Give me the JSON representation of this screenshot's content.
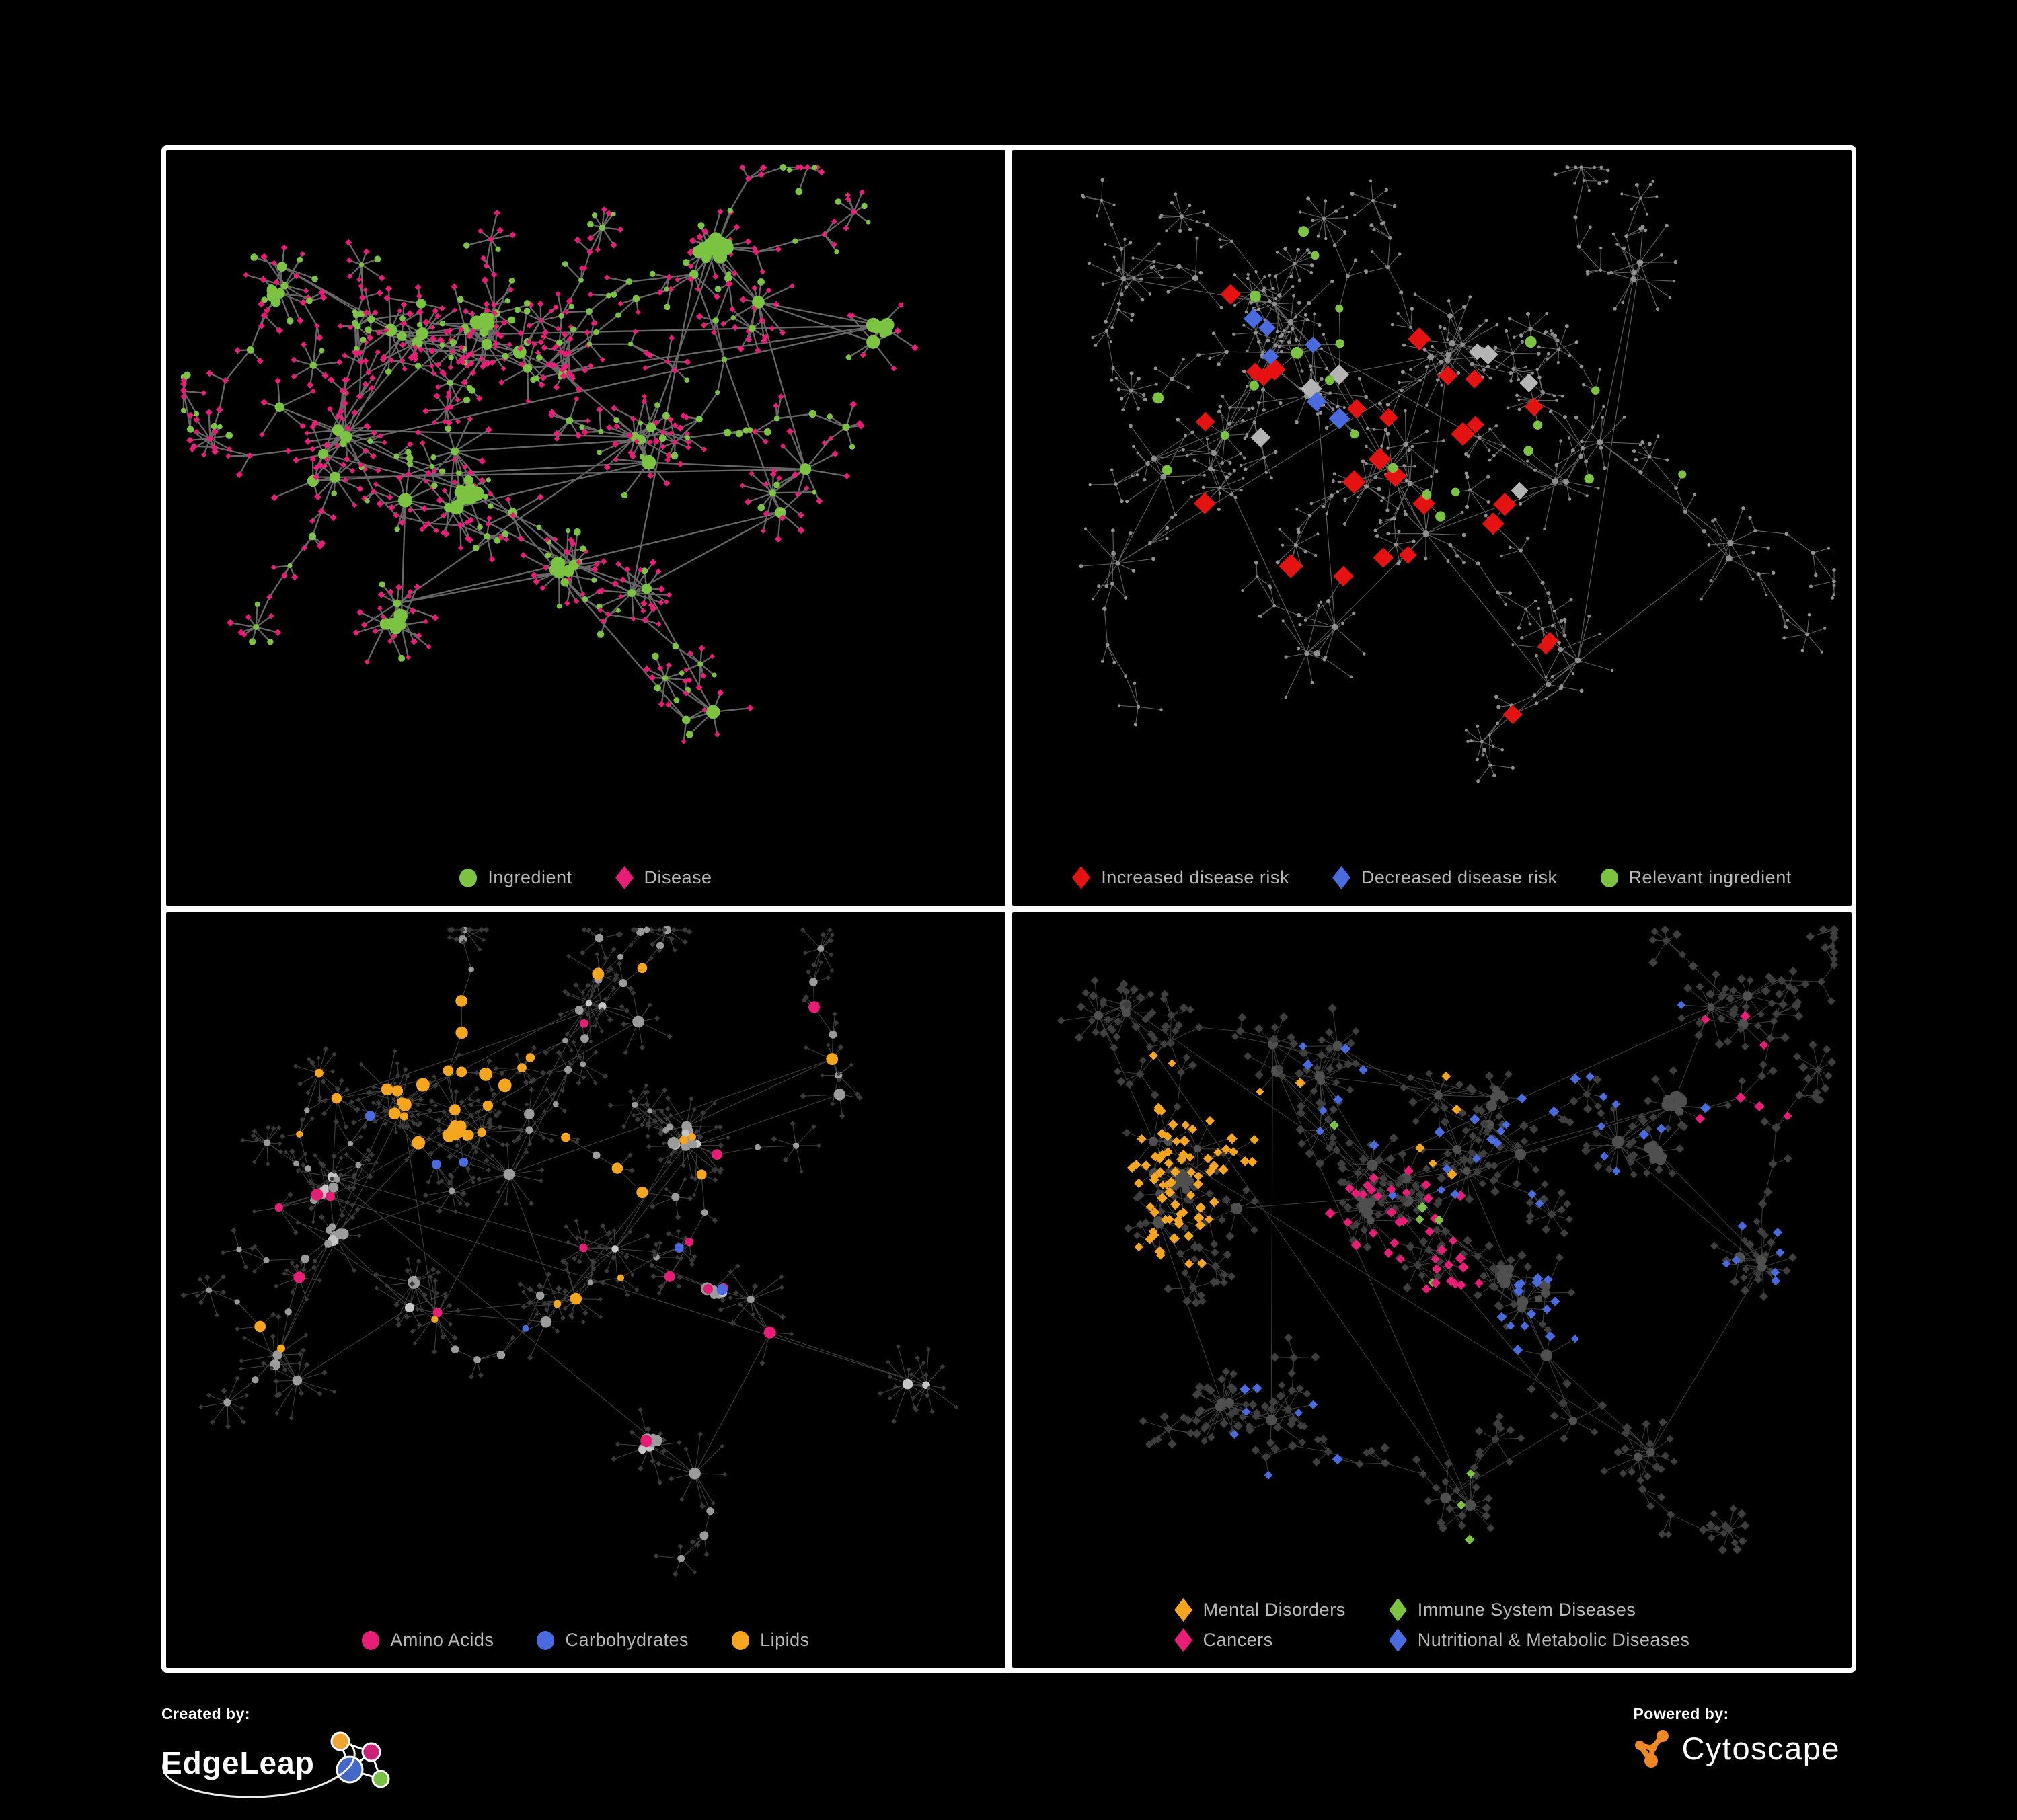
{
  "page": {
    "background": "#000000",
    "frame_color": "#ffffff"
  },
  "colors": {
    "green": "#7cc342",
    "pink": "#e81d78",
    "red": "#e51212",
    "blue": "#4a6bdf",
    "orange": "#f6a61e",
    "gray_node": "#8f8f8f",
    "light_gray_diamond": "#b4b4b4",
    "dark_diamond": "#3e3e3e",
    "legend_text": "#b8b8b8"
  },
  "panels": [
    {
      "name": "ingredient-disease-network",
      "legend_layout": "row",
      "legend": [
        {
          "shape": "circle",
          "color": "#7cc342",
          "label": "Ingredient"
        },
        {
          "shape": "diamond",
          "color": "#e81d78",
          "label": "Disease"
        }
      ],
      "net": {
        "seed": 7,
        "clusters": [
          [
            0.3,
            0.27,
            0.1,
            7
          ],
          [
            0.2,
            0.4,
            0.11,
            7
          ],
          [
            0.42,
            0.3,
            0.08,
            6
          ],
          [
            0.36,
            0.5,
            0.1,
            6
          ],
          [
            0.56,
            0.42,
            0.08,
            4
          ],
          [
            0.68,
            0.2,
            0.08,
            4
          ],
          [
            0.52,
            0.66,
            0.08,
            4
          ],
          [
            0.28,
            0.7,
            0.07,
            3
          ],
          [
            0.76,
            0.52,
            0.06,
            3
          ],
          [
            0.14,
            0.2,
            0.06,
            3
          ],
          [
            0.62,
            0.84,
            0.05,
            2
          ],
          [
            0.86,
            0.3,
            0.05,
            2
          ]
        ],
        "extraEdges": 26,
        "leafMin": 3,
        "leafMax": 11,
        "leafDist": 42,
        "chains": 26,
        "clumps": 10,
        "edge": {
          "color": "#6d6d6d",
          "width": 2.3,
          "opacity": 0.95
        },
        "base": {
          "hub": [
            {
              "p": 1.0,
              "shape": "circle",
              "color": "#7cc342",
              "size": [
                5,
                11
              ]
            }
          ],
          "mid": [
            {
              "p": 0.5,
              "shape": "circle",
              "color": "#7cc342",
              "size": [
                3.5,
                6
              ]
            },
            {
              "p": 0.5,
              "shape": "diamond",
              "color": "#e81d78",
              "size": [
                4,
                5.5
              ]
            }
          ],
          "leaf": [
            {
              "p": 0.8,
              "shape": "diamond",
              "color": "#e81d78",
              "size": [
                4,
                5.5
              ]
            },
            {
              "p": 0.2,
              "shape": "circle",
              "color": "#7cc342",
              "size": [
                3.5,
                5.5
              ]
            }
          ]
        },
        "highlights": []
      }
    },
    {
      "name": "disease-risk-network",
      "legend_layout": "row",
      "legend": [
        {
          "shape": "diamond",
          "color": "#e51212",
          "label": "Increased disease risk"
        },
        {
          "shape": "diamond",
          "color": "#4a6bdf",
          "label": "Decreased disease risk"
        },
        {
          "shape": "circle",
          "color": "#7cc342",
          "label": "Relevant ingredient"
        }
      ],
      "net": {
        "seed": 5,
        "clusters": [
          [
            0.34,
            0.3,
            0.12,
            7
          ],
          [
            0.52,
            0.3,
            0.09,
            6
          ],
          [
            0.24,
            0.44,
            0.09,
            5
          ],
          [
            0.48,
            0.5,
            0.09,
            5
          ],
          [
            0.68,
            0.44,
            0.08,
            4
          ],
          [
            0.74,
            0.18,
            0.07,
            3
          ],
          [
            0.38,
            0.7,
            0.08,
            4
          ],
          [
            0.64,
            0.74,
            0.06,
            3
          ],
          [
            0.18,
            0.2,
            0.07,
            3
          ],
          [
            0.86,
            0.58,
            0.05,
            2
          ],
          [
            0.12,
            0.6,
            0.05,
            2
          ]
        ],
        "extraEdges": 10,
        "leafMin": 2,
        "leafMax": 9,
        "leafDist": 50,
        "chains": 34,
        "clumps": 0,
        "edge": {
          "color": "#8c8c8c",
          "width": 1.1,
          "opacity": 0.7
        },
        "base": {
          "hub": [
            {
              "p": 1.0,
              "shape": "circle",
              "color": "#8f8f8f",
              "size": [
                3,
                5
              ]
            }
          ],
          "mid": [
            {
              "p": 1.0,
              "shape": "circle",
              "color": "#8f8f8f",
              "size": [
                2.2,
                3.2
              ]
            }
          ],
          "leaf": [
            {
              "p": 1.0,
              "shape": "circle",
              "color": "#8f8f8f",
              "size": [
                2,
                3
              ]
            }
          ]
        },
        "highlights": [
          {
            "shape": "diamond",
            "color": "#e51212",
            "size": [
              13,
              18
            ],
            "count": 24,
            "region": [
              0.42,
              0.36,
              0.3
            ]
          },
          {
            "shape": "diamond",
            "color": "#e51212",
            "size": [
              12,
              15
            ],
            "count": 3,
            "region": [
              0.63,
              0.78,
              0.1
            ]
          },
          {
            "shape": "diamond",
            "color": "#4a6bdf",
            "size": [
              12,
              16
            ],
            "count": 6,
            "region": [
              0.3,
              0.35,
              0.14
            ]
          },
          {
            "shape": "diamond",
            "color": "#4a6bdf",
            "size": [
              12,
              14
            ],
            "count": 2,
            "region": [
              0.86,
              0.17,
              0.06
            ]
          },
          {
            "shape": "diamond",
            "color": "#b4b4b4",
            "size": [
              12,
              16
            ],
            "count": 7,
            "region": [
              0.44,
              0.4,
              0.24
            ]
          },
          {
            "shape": "circle",
            "color": "#7cc342",
            "size": [
              6,
              9
            ],
            "count": 19,
            "region": [
              0.4,
              0.36,
              0.3
            ]
          },
          {
            "shape": "circle",
            "color": "#7cc342",
            "size": [
              6,
              8
            ],
            "count": 3,
            "region": [
              0.75,
              0.4,
              0.15
            ]
          }
        ]
      }
    },
    {
      "name": "ingredient-classes-network",
      "legend_layout": "row",
      "legend": [
        {
          "shape": "circle",
          "color": "#e81d78",
          "label": "Amino Acids"
        },
        {
          "shape": "circle",
          "color": "#4a6bdf",
          "label": "Carbohydrates"
        },
        {
          "shape": "circle",
          "color": "#f6a61e",
          "label": "Lipids"
        }
      ],
      "net": {
        "seed": 23,
        "clusters": [
          [
            0.28,
            0.28,
            0.1,
            7
          ],
          [
            0.18,
            0.42,
            0.09,
            6
          ],
          [
            0.38,
            0.34,
            0.09,
            6
          ],
          [
            0.48,
            0.54,
            0.09,
            5
          ],
          [
            0.32,
            0.6,
            0.08,
            4
          ],
          [
            0.62,
            0.34,
            0.08,
            4
          ],
          [
            0.7,
            0.58,
            0.07,
            3
          ],
          [
            0.52,
            0.14,
            0.07,
            4
          ],
          [
            0.14,
            0.66,
            0.06,
            3
          ],
          [
            0.8,
            0.24,
            0.06,
            3
          ],
          [
            0.6,
            0.8,
            0.05,
            2
          ],
          [
            0.88,
            0.7,
            0.04,
            2
          ]
        ],
        "extraEdges": 26,
        "leafMin": 3,
        "leafMax": 12,
        "leafDist": 40,
        "chains": 26,
        "clumps": 7,
        "edge": {
          "color": "#7d7d7d",
          "width": 1.1,
          "opacity": 0.5
        },
        "base": {
          "hub": [
            {
              "p": 0.55,
              "shape": "circle",
              "color": "#9b9b9b",
              "size": [
                5,
                10
              ]
            },
            {
              "p": 0.45,
              "shape": "circle",
              "color": "#c6c6c6",
              "size": [
                4.5,
                8
              ]
            }
          ],
          "mid": [
            {
              "p": 1.0,
              "shape": "circle",
              "color": "#9b9b9b",
              "size": [
                4,
                6.5
              ]
            }
          ],
          "leaf": [
            {
              "p": 1.0,
              "shape": "diamond",
              "color": "#3a3a3a",
              "size": [
                3.2,
                4.5
              ]
            }
          ]
        },
        "highlights": [
          {
            "shape": "circle",
            "color": "#f6a61e",
            "size": [
              6,
              10
            ],
            "count": 30,
            "region": [
              0.34,
              0.22,
              0.13
            ],
            "kinds": [
              "hub",
              "mid"
            ]
          },
          {
            "shape": "circle",
            "color": "#f6a61e",
            "size": [
              5,
              9
            ],
            "count": 18,
            "region": [
              0.5,
              0.5,
              0.55
            ],
            "kinds": [
              "hub",
              "mid"
            ]
          },
          {
            "shape": "circle",
            "color": "#4a6bdf",
            "size": [
              5,
              8
            ],
            "count": 8,
            "region": [
              0.31,
              0.3,
              0.11
            ],
            "kinds": [
              "hub",
              "mid"
            ]
          },
          {
            "shape": "circle",
            "color": "#4a6bdf",
            "size": [
              5,
              8
            ],
            "count": 3,
            "region": [
              0.65,
              0.55,
              0.3
            ],
            "kinds": [
              "hub",
              "mid"
            ]
          },
          {
            "shape": "circle",
            "color": "#e81d78",
            "size": [
              6,
              9
            ],
            "count": 15,
            "region": [
              0.5,
              0.52,
              0.52
            ],
            "kinds": [
              "hub",
              "mid"
            ]
          }
        ]
      }
    },
    {
      "name": "disease-categories-network",
      "legend_layout": "grid",
      "legend": [
        {
          "shape": "diamond",
          "color": "#f6a61e",
          "label": "Mental Disorders"
        },
        {
          "shape": "diamond",
          "color": "#7cc342",
          "label": "Immune System Diseases"
        },
        {
          "shape": "diamond",
          "color": "#e81d78",
          "label": "Cancers"
        },
        {
          "shape": "diamond",
          "color": "#4a6bdf",
          "label": "Nutritional & Metabolic Diseases"
        }
      ],
      "net": {
        "seed": 31,
        "clusters": [
          [
            0.2,
            0.4,
            0.1,
            9
          ],
          [
            0.42,
            0.44,
            0.1,
            7
          ],
          [
            0.55,
            0.33,
            0.09,
            6
          ],
          [
            0.34,
            0.24,
            0.08,
            5
          ],
          [
            0.6,
            0.6,
            0.08,
            5
          ],
          [
            0.76,
            0.3,
            0.08,
            4
          ],
          [
            0.72,
            0.76,
            0.07,
            3
          ],
          [
            0.28,
            0.72,
            0.08,
            4
          ],
          [
            0.86,
            0.14,
            0.06,
            3
          ],
          [
            0.14,
            0.14,
            0.06,
            3
          ],
          [
            0.88,
            0.52,
            0.05,
            3
          ],
          [
            0.52,
            0.86,
            0.05,
            2
          ]
        ],
        "extraEdges": 20,
        "leafMin": 4,
        "leafMax": 13,
        "leafDist": 38,
        "chains": 24,
        "clumps": 8,
        "edge": {
          "color": "#9a9a9a",
          "width": 1.0,
          "opacity": 0.4
        },
        "base": {
          "hub": [
            {
              "p": 1.0,
              "shape": "circle",
              "color": "#4f4f4f",
              "size": [
                5,
                9
              ]
            }
          ],
          "mid": [
            {
              "p": 1.0,
              "shape": "diamond",
              "color": "#3e3e3e",
              "size": [
                6,
                7
              ]
            }
          ],
          "leaf": [
            {
              "p": 1.0,
              "shape": "diamond",
              "color": "#3e3e3e",
              "size": [
                5.5,
                7
              ]
            }
          ]
        },
        "highlights": [
          {
            "shape": "diamond",
            "color": "#f6a61e",
            "size": [
              6.5,
              8
            ],
            "count": 60,
            "region": [
              0.18,
              0.4,
              0.14
            ],
            "kinds": [
              "mid",
              "leaf"
            ]
          },
          {
            "shape": "diamond",
            "color": "#f6a61e",
            "size": [
              6,
              8
            ],
            "count": 16,
            "region": [
              0.22,
              0.3,
              0.12
            ],
            "kinds": [
              "mid",
              "leaf"
            ]
          },
          {
            "shape": "diamond",
            "color": "#f6a61e",
            "size": [
              6,
              8
            ],
            "count": 6,
            "region": [
              0.5,
              0.1,
              0.3
            ],
            "kinds": [
              "mid",
              "leaf"
            ]
          },
          {
            "shape": "diamond",
            "color": "#e81d78",
            "size": [
              6.5,
              8
            ],
            "count": 38,
            "region": [
              0.46,
              0.5,
              0.13
            ],
            "kinds": [
              "mid",
              "leaf"
            ]
          },
          {
            "shape": "diamond",
            "color": "#e81d78",
            "size": [
              6,
              8
            ],
            "count": 7,
            "region": [
              0.86,
              0.24,
              0.1
            ],
            "kinds": [
              "mid",
              "leaf"
            ]
          },
          {
            "shape": "diamond",
            "color": "#4a6bdf",
            "size": [
              6,
              8
            ],
            "count": 26,
            "region": [
              0.72,
              0.45,
              0.26
            ],
            "kinds": [
              "mid",
              "leaf"
            ]
          },
          {
            "shape": "diamond",
            "color": "#4a6bdf",
            "size": [
              6,
              8
            ],
            "count": 18,
            "region": [
              0.55,
              0.12,
              0.33
            ],
            "kinds": [
              "mid",
              "leaf"
            ]
          },
          {
            "shape": "diamond",
            "color": "#4a6bdf",
            "size": [
              6,
              8
            ],
            "count": 12,
            "region": [
              0.64,
              0.6,
              0.07
            ],
            "kinds": [
              "mid",
              "leaf"
            ]
          },
          {
            "shape": "diamond",
            "color": "#4a6bdf",
            "size": [
              6,
              8
            ],
            "count": 8,
            "region": [
              0.3,
              0.85,
              0.25
            ],
            "kinds": [
              "mid",
              "leaf"
            ]
          },
          {
            "shape": "diamond",
            "color": "#7cc342",
            "size": [
              6,
              8
            ],
            "count": 5,
            "region": [
              0.45,
              0.4,
              0.18
            ],
            "kinds": [
              "mid",
              "leaf"
            ]
          },
          {
            "shape": "diamond",
            "color": "#7cc342",
            "size": [
              6,
              8
            ],
            "count": 3,
            "region": [
              0.55,
              0.78,
              0.2
            ],
            "kinds": [
              "mid",
              "leaf"
            ]
          }
        ]
      }
    }
  ],
  "footer": {
    "created_by_label": "Created by:",
    "brand": "EdgeLeap",
    "powered_by_label": "Powered by:",
    "engine": "Cytoscape",
    "edgeleap_colors": {
      "orange": "#f0a431",
      "magenta": "#cc2277",
      "blue": "#4468c8",
      "green": "#79c143"
    },
    "cytoscape_orange": "#ee8822"
  }
}
